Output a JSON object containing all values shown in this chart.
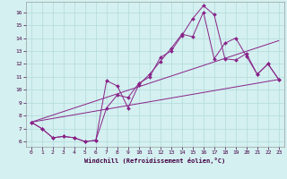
{
  "xlabel": "Windchill (Refroidissement éolien,°C)",
  "bg_color": "#d4f0f0",
  "line_color": "#882288",
  "grid_color": "#b8dede",
  "xlim": [
    -0.5,
    23.5
  ],
  "ylim": [
    5.6,
    16.8
  ],
  "xticks": [
    0,
    1,
    2,
    3,
    4,
    5,
    6,
    7,
    8,
    9,
    10,
    11,
    12,
    13,
    14,
    15,
    16,
    17,
    18,
    19,
    20,
    21,
    22,
    23
  ],
  "yticks": [
    6,
    7,
    8,
    9,
    10,
    11,
    12,
    13,
    14,
    15,
    16
  ],
  "series": [
    {
      "x": [
        0,
        1,
        2,
        3,
        4,
        5,
        6,
        7,
        8,
        9,
        10,
        11,
        12,
        13,
        14,
        15,
        16,
        17,
        18,
        19,
        20,
        21,
        22,
        23
      ],
      "y": [
        7.5,
        7.0,
        6.3,
        6.4,
        6.3,
        6.0,
        6.1,
        8.6,
        9.6,
        9.4,
        10.5,
        11.0,
        12.5,
        13.0,
        14.2,
        15.5,
        16.5,
        15.8,
        12.4,
        12.3,
        12.8,
        11.2,
        12.0,
        10.8
      ],
      "markers": true
    },
    {
      "x": [
        0,
        1,
        2,
        3,
        4,
        5,
        6,
        7,
        8,
        9,
        10,
        11,
        12,
        13,
        14,
        15,
        16,
        17,
        18,
        19,
        20,
        21,
        22,
        23
      ],
      "y": [
        7.5,
        7.0,
        6.3,
        6.4,
        6.3,
        6.0,
        6.1,
        10.7,
        10.3,
        8.6,
        10.4,
        11.2,
        12.2,
        13.2,
        14.3,
        14.1,
        16.0,
        12.4,
        13.6,
        14.0,
        12.6,
        11.2,
        12.0,
        10.8
      ],
      "markers": true
    },
    {
      "x": [
        0,
        23
      ],
      "y": [
        7.5,
        10.8
      ],
      "markers": false
    },
    {
      "x": [
        0,
        23
      ],
      "y": [
        7.5,
        13.8
      ],
      "markers": false
    }
  ]
}
